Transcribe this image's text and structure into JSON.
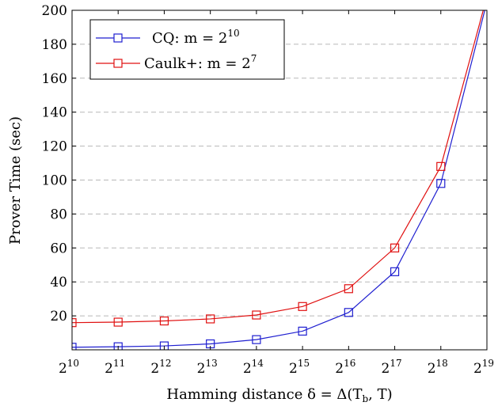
{
  "chart_data": {
    "type": "line",
    "x_tick_base": "2",
    "x_tick_exponents": [
      "10",
      "11",
      "12",
      "13",
      "14",
      "15",
      "16",
      "17",
      "18",
      "19"
    ],
    "x_exponents": [
      10,
      11,
      12,
      13,
      14,
      15,
      16,
      17,
      18,
      19
    ],
    "xlim_exponent": [
      10,
      19
    ],
    "y_ticks": [
      20,
      40,
      60,
      80,
      100,
      120,
      140,
      160,
      180,
      200
    ],
    "ylim": [
      0,
      200
    ],
    "xlabel": "Hamming distance δ = Δ(T",
    "xlabel_sub": "b",
    "xlabel_end": ", T)",
    "ylabel": "Prover Time (sec)",
    "grid": "horizontal dashed",
    "legend_position": "top-left",
    "series": [
      {
        "name": "CQ: m = 2",
        "name_sup": "10",
        "color": "#1f1fd0",
        "marker": "square",
        "x_exponents": [
          10,
          11,
          12,
          13,
          14,
          15,
          16,
          17,
          18,
          19
        ],
        "values": [
          1.5,
          1.8,
          2.3,
          3.5,
          6.0,
          11.0,
          22.0,
          46.0,
          98.0,
          205.0
        ]
      },
      {
        "name": "Caulk+: m = 2",
        "name_sup": "7",
        "color": "#e01010",
        "marker": "square",
        "x_exponents": [
          10,
          11,
          12,
          13,
          14,
          15,
          16,
          17,
          18,
          19
        ],
        "values": [
          16.0,
          16.3,
          17.0,
          18.2,
          20.5,
          25.5,
          36.0,
          60.0,
          108.0,
          208.0
        ]
      }
    ]
  }
}
